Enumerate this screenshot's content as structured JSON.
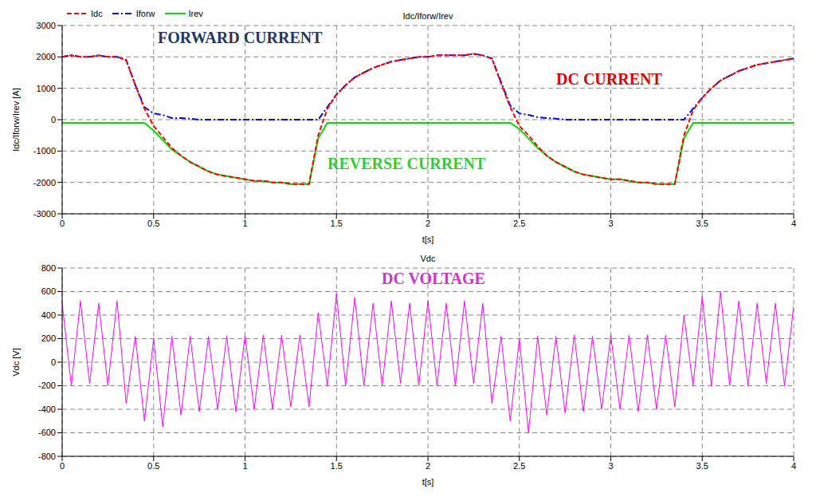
{
  "chart_data": [
    {
      "type": "line",
      "title": "Idc/Iforw/Irev",
      "x_label": "t[s]",
      "y_label": "Idc/Iforw/Irev [A]",
      "x": [
        0,
        0.05,
        0.1,
        0.15,
        0.2,
        0.25,
        0.3,
        0.35,
        0.4,
        0.45,
        0.5,
        0.55,
        0.6,
        0.65,
        0.7,
        0.75,
        0.8,
        0.85,
        0.9,
        0.95,
        1,
        1.05,
        1.1,
        1.15,
        1.2,
        1.25,
        1.3,
        1.35,
        1.4,
        1.45,
        1.5,
        1.55,
        1.6,
        1.65,
        1.7,
        1.75,
        1.8,
        1.85,
        1.9,
        1.95,
        2,
        2.05,
        2.1,
        2.15,
        2.2,
        2.25,
        2.3,
        2.35,
        2.4,
        2.45,
        2.5,
        2.55,
        2.6,
        2.65,
        2.7,
        2.75,
        2.8,
        2.85,
        2.9,
        2.95,
        3,
        3.05,
        3.1,
        3.15,
        3.2,
        3.25,
        3.3,
        3.35,
        3.4,
        3.45,
        3.5,
        3.55,
        3.6,
        3.65,
        3.7,
        3.75,
        3.8,
        3.85,
        3.9,
        3.95,
        4
      ],
      "series": [
        {
          "name": "Idc",
          "color": "#ff0000",
          "line_style": "dashed",
          "values": [
            2000,
            2050,
            2000,
            2000,
            2050,
            2000,
            2000,
            1900,
            1100,
            350,
            -200,
            -550,
            -900,
            -1150,
            -1350,
            -1500,
            -1650,
            -1750,
            -1800,
            -1850,
            -1900,
            -1950,
            -1950,
            -2000,
            -2000,
            -2050,
            -2050,
            -2050,
            -500,
            350,
            800,
            1100,
            1350,
            1500,
            1650,
            1750,
            1850,
            1900,
            1950,
            2000,
            2000,
            2050,
            2050,
            2050,
            2050,
            2100,
            2050,
            1950,
            1150,
            400,
            -200,
            -500,
            -850,
            -1150,
            -1350,
            -1500,
            -1650,
            -1750,
            -1800,
            -1850,
            -1900,
            -1900,
            -1950,
            -2000,
            -2000,
            -2050,
            -2050,
            -2050,
            -500,
            300,
            700,
            1000,
            1250,
            1400,
            1550,
            1650,
            1750,
            1800,
            1850,
            1900,
            1950
          ]
        },
        {
          "name": "Iforw",
          "color": "#0000ff",
          "line_style": "dashdot",
          "values": [
            2000,
            2050,
            2000,
            2000,
            2050,
            2000,
            2000,
            1900,
            1100,
            400,
            200,
            150,
            50,
            50,
            30,
            0,
            0,
            0,
            0,
            0,
            0,
            0,
            0,
            0,
            0,
            0,
            0,
            0,
            0,
            400,
            800,
            1100,
            1350,
            1500,
            1650,
            1750,
            1850,
            1900,
            1950,
            2000,
            2000,
            2050,
            2050,
            2050,
            2050,
            2100,
            2050,
            1950,
            1200,
            450,
            200,
            150,
            80,
            50,
            30,
            0,
            0,
            0,
            0,
            0,
            0,
            0,
            0,
            0,
            0,
            0,
            0,
            0,
            0,
            350,
            700,
            1000,
            1250,
            1400,
            1550,
            1650,
            1750,
            1800,
            1850,
            1900,
            1950
          ]
        },
        {
          "name": "Irev",
          "color": "#00dd00",
          "line_style": "solid",
          "values": [
            -100,
            -100,
            -100,
            -100,
            -100,
            -100,
            -100,
            -100,
            -100,
            -100,
            -350,
            -650,
            -950,
            -1150,
            -1350,
            -1500,
            -1650,
            -1750,
            -1800,
            -1850,
            -1900,
            -1950,
            -1950,
            -2000,
            -2000,
            -2050,
            -2050,
            -2050,
            -600,
            -100,
            -100,
            -100,
            -100,
            -100,
            -100,
            -100,
            -100,
            -100,
            -100,
            -100,
            -100,
            -100,
            -100,
            -100,
            -100,
            -100,
            -100,
            -100,
            -100,
            -100,
            -300,
            -600,
            -900,
            -1150,
            -1350,
            -1500,
            -1650,
            -1750,
            -1800,
            -1850,
            -1900,
            -1900,
            -1950,
            -2000,
            -2000,
            -2050,
            -2050,
            -2050,
            -600,
            -100,
            -100,
            -100,
            -100,
            -100,
            -100,
            -100,
            -100,
            -100,
            -100,
            -100,
            -100
          ]
        }
      ],
      "xlim": [
        0,
        4
      ],
      "xticks": [
        0,
        0.5,
        1,
        1.5,
        2,
        2.5,
        3,
        3.5,
        4
      ],
      "ylim": [
        -3000,
        3000
      ],
      "yticks": [
        -3000,
        -2000,
        -1000,
        0,
        1000,
        2000,
        3000
      ],
      "grid": true,
      "legend": "upper left",
      "annotations": [
        {
          "text": "FORWARD CURRENT",
          "color": "#1f3864"
        },
        {
          "text": "DC CURRENT",
          "color": "#e00000"
        },
        {
          "text": "REVERSE CURRENT",
          "color": "#33cc33"
        }
      ]
    },
    {
      "type": "line",
      "title": "Vdc",
      "x_label": "t[s]",
      "y_label": "Vdc [V]",
      "x": [
        0,
        0.05,
        0.1,
        0.15,
        0.2,
        0.25,
        0.3,
        0.35,
        0.4,
        0.45,
        0.5,
        0.55,
        0.6,
        0.65,
        0.7,
        0.75,
        0.8,
        0.85,
        0.9,
        0.95,
        1,
        1.05,
        1.1,
        1.15,
        1.2,
        1.25,
        1.3,
        1.35,
        1.4,
        1.45,
        1.5,
        1.55,
        1.6,
        1.65,
        1.7,
        1.75,
        1.8,
        1.85,
        1.9,
        1.95,
        2,
        2.05,
        2.1,
        2.15,
        2.2,
        2.25,
        2.3,
        2.35,
        2.4,
        2.45,
        2.5,
        2.55,
        2.6,
        2.65,
        2.7,
        2.75,
        2.8,
        2.85,
        2.9,
        2.95,
        3,
        3.05,
        3.1,
        3.15,
        3.2,
        3.25,
        3.3,
        3.35,
        3.4,
        3.45,
        3.5,
        3.55,
        3.6,
        3.65,
        3.7,
        3.75,
        3.8,
        3.85,
        3.9,
        3.95,
        4
      ],
      "series": [
        {
          "name": "Vdc",
          "color": "#ff00ff",
          "line_style": "solid",
          "values": [
            500,
            -200,
            520,
            -180,
            500,
            -200,
            520,
            -350,
            220,
            -500,
            200,
            -550,
            220,
            -450,
            220,
            -420,
            220,
            -400,
            220,
            -420,
            230,
            -400,
            230,
            -400,
            230,
            -380,
            230,
            -380,
            420,
            -200,
            580,
            -200,
            550,
            -200,
            500,
            -200,
            520,
            -180,
            500,
            -200,
            520,
            -200,
            500,
            -200,
            520,
            -180,
            500,
            -350,
            220,
            -500,
            200,
            -600,
            220,
            -450,
            220,
            -430,
            230,
            -420,
            220,
            -400,
            230,
            -400,
            230,
            -420,
            230,
            -400,
            230,
            -380,
            400,
            -200,
            560,
            -200,
            600,
            -200,
            520,
            -200,
            500,
            -180,
            500,
            -200,
            480
          ]
        }
      ],
      "xlim": [
        0,
        4
      ],
      "xticks": [
        0,
        0.5,
        1,
        1.5,
        2,
        2.5,
        3,
        3.5,
        4
      ],
      "ylim": [
        -800,
        800
      ],
      "yticks": [
        -800,
        -600,
        -400,
        -200,
        0,
        200,
        400,
        600,
        800
      ],
      "grid": true,
      "annotations": [
        {
          "text": "DC VOLTAGE",
          "color": "#cc33cc"
        }
      ]
    }
  ]
}
